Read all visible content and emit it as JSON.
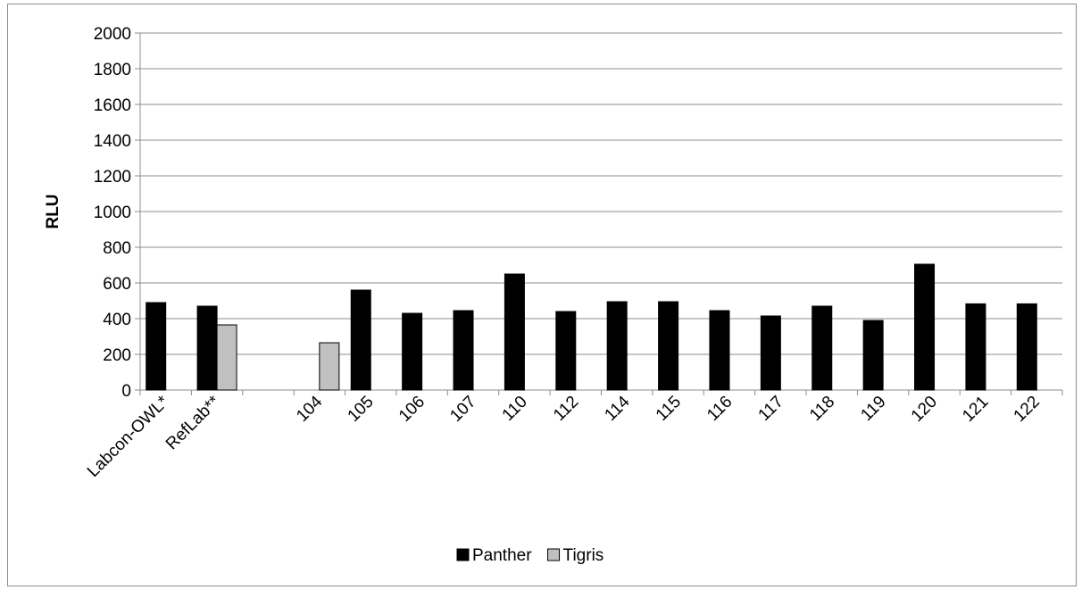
{
  "chart_data": {
    "type": "bar",
    "title": "",
    "xlabel": "",
    "ylabel": "RLU",
    "ylim": [
      0,
      2000
    ],
    "yticks": [
      0,
      200,
      400,
      600,
      800,
      1000,
      1200,
      1400,
      1600,
      1800,
      2000
    ],
    "grid": true,
    "legend_position": "bottom",
    "categories": [
      "Labcon-OWL*",
      "RefLab**",
      "",
      "104",
      "105",
      "106",
      "107",
      "110",
      "112",
      "114",
      "115",
      "116",
      "117",
      "118",
      "119",
      "120",
      "121",
      "122"
    ],
    "series": [
      {
        "name": "Panther",
        "color": "#000000",
        "values": [
          490,
          470,
          null,
          null,
          560,
          430,
          445,
          650,
          440,
          495,
          495,
          445,
          415,
          470,
          390,
          705,
          483,
          483
        ]
      },
      {
        "name": "Tigris",
        "color": "#c0c0c0",
        "values": [
          null,
          365,
          null,
          265,
          null,
          null,
          null,
          null,
          null,
          null,
          null,
          null,
          null,
          null,
          null,
          null,
          null,
          null
        ]
      }
    ]
  }
}
